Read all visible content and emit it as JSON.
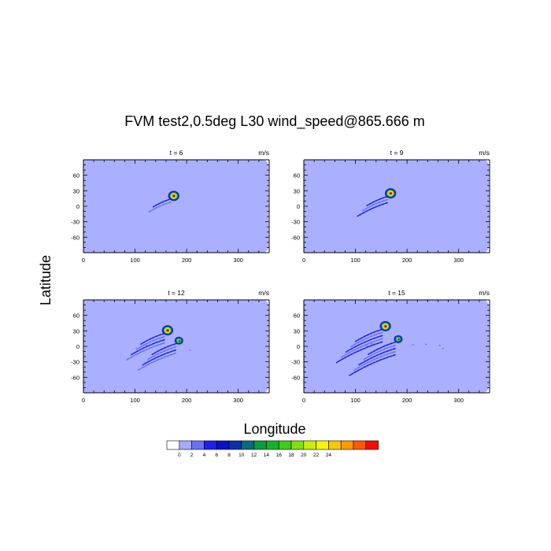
{
  "figure": {
    "title": "FVM test2,0.5deg L30 wind_speed@865.666 m",
    "ylabel": "Latitude",
    "xlabel": "Longitude"
  },
  "colors": {
    "background_field": "#aab0ff",
    "levels": [
      "#ffffff",
      "#a5aaf9",
      "#6b72f2",
      "#1b22f0",
      "#0a10c8",
      "#0a2fa8",
      "#0b6a7c",
      "#0c9a3e",
      "#13b325",
      "#3dcc17",
      "#86dc10",
      "#c8ed0e",
      "#f6f607",
      "#f7c904",
      "#fb9a02",
      "#fb5b00",
      "#f90a00"
    ]
  },
  "chart_data": [
    {
      "type": "heatmap",
      "title": "t = 6",
      "units": "m/s",
      "xlim": [
        0,
        360
      ],
      "ylim": [
        -90,
        90
      ],
      "xticks": [
        0,
        100,
        200,
        300
      ],
      "yticks": [
        60,
        30,
        0,
        -30,
        -60
      ],
      "features": [
        {
          "kind": "vortex_core",
          "lon": 175,
          "lat": 20,
          "peak_speed": 24
        }
      ]
    },
    {
      "type": "heatmap",
      "title": "t = 9",
      "units": "m/s",
      "xlim": [
        0,
        360
      ],
      "ylim": [
        -90,
        90
      ],
      "xticks": [
        0,
        100,
        200,
        300
      ],
      "yticks": [
        60,
        30,
        0,
        -30,
        -60
      ],
      "features": [
        {
          "kind": "vortex_core",
          "lon": 168,
          "lat": 25,
          "peak_speed": 24
        }
      ]
    },
    {
      "type": "heatmap",
      "title": "t = 12",
      "units": "m/s",
      "xlim": [
        0,
        360
      ],
      "ylim": [
        -90,
        90
      ],
      "xticks": [
        0,
        100,
        200,
        300
      ],
      "yticks": [
        60,
        30,
        0,
        -30,
        -60
      ],
      "features": [
        {
          "kind": "vortex_core",
          "lon": 163,
          "lat": 31,
          "peak_speed": 24
        },
        {
          "kind": "vortex_core",
          "lon": 185,
          "lat": 11,
          "peak_speed": 14
        }
      ]
    },
    {
      "type": "heatmap",
      "title": "t = 15",
      "units": "m/s",
      "xlim": [
        0,
        360
      ],
      "ylim": [
        -90,
        90
      ],
      "xticks": [
        0,
        100,
        200,
        300
      ],
      "yticks": [
        60,
        30,
        0,
        -30,
        -60
      ],
      "features": [
        {
          "kind": "vortex_core",
          "lon": 158,
          "lat": 39,
          "peak_speed": 24
        },
        {
          "kind": "vortex_core",
          "lon": 183,
          "lat": 14,
          "peak_speed": 20
        }
      ]
    }
  ],
  "colorbar": {
    "labels": [
      "0",
      "2",
      "4",
      "6",
      "8",
      "10",
      "12",
      "14",
      "16",
      "18",
      "20",
      "22",
      "24"
    ]
  }
}
